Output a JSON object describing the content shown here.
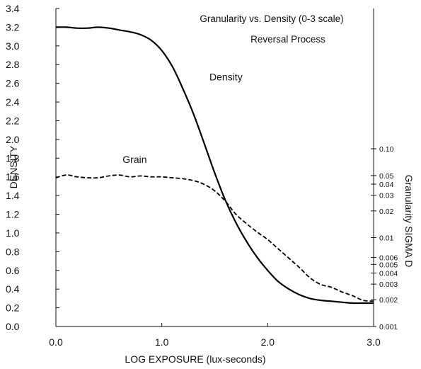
{
  "chart_data": {
    "type": "line",
    "title": "Granularity vs. Density (0-3 scale)",
    "subtitle": "Reversal Process",
    "xlabel": "LOG EXPOSURE (lux-seconds)",
    "ylabel": "DENSITY",
    "y2label": "Granularity SIGMA D",
    "xlim": [
      0,
      3
    ],
    "ylim": [
      0,
      3.4
    ],
    "x_ticks": [
      {
        "value": 0,
        "label": "0.0"
      },
      {
        "value": 1,
        "label": "1.0"
      },
      {
        "value": 2,
        "label": "2.0"
      },
      {
        "value": 3,
        "label": "3.0"
      }
    ],
    "y_ticks": [
      {
        "value": 0.0,
        "label": "0.0"
      },
      {
        "value": 0.2,
        "label": "0.2"
      },
      {
        "value": 0.4,
        "label": "0.4"
      },
      {
        "value": 0.6,
        "label": "0.6"
      },
      {
        "value": 0.8,
        "label": "0.8"
      },
      {
        "value": 1.0,
        "label": "1.0"
      },
      {
        "value": 1.2,
        "label": "1.2"
      },
      {
        "value": 1.4,
        "label": "1.4"
      },
      {
        "value": 1.6,
        "label": "1.6"
      },
      {
        "value": 1.8,
        "label": "1.8"
      },
      {
        "value": 2.0,
        "label": "2.0"
      },
      {
        "value": 2.2,
        "label": "2.2"
      },
      {
        "value": 2.4,
        "label": "2.4"
      },
      {
        "value": 2.6,
        "label": "2.6"
      },
      {
        "value": 2.8,
        "label": "2.8"
      },
      {
        "value": 3.0,
        "label": "3.0"
      },
      {
        "value": 3.2,
        "label": "3.2"
      },
      {
        "value": 3.4,
        "label": "3.4"
      }
    ],
    "y2_scale": "log",
    "y2_ticks": [
      {
        "value": 0.1,
        "label": "0.10"
      },
      {
        "value": 0.05,
        "label": "0.05"
      },
      {
        "value": 0.04,
        "label": "0.04"
      },
      {
        "value": 0.03,
        "label": "0.03"
      },
      {
        "value": 0.02,
        "label": "0.02"
      },
      {
        "value": 0.01,
        "label": "0.01"
      },
      {
        "value": 0.006,
        "label": "0.006"
      },
      {
        "value": 0.005,
        "label": "0.005"
      },
      {
        "value": 0.004,
        "label": "0.004"
      },
      {
        "value": 0.003,
        "label": "0.003"
      },
      {
        "value": 0.002,
        "label": "0.002"
      },
      {
        "value": 0.001,
        "label": "0.001"
      }
    ],
    "series": [
      {
        "name": "Density",
        "line_style": "solid",
        "x": [
          0,
          0.1,
          0.2,
          0.3,
          0.4,
          0.5,
          0.6,
          0.7,
          0.8,
          0.9,
          1.0,
          1.1,
          1.2,
          1.3,
          1.4,
          1.5,
          1.6,
          1.7,
          1.8,
          1.9,
          2.0,
          2.1,
          2.2,
          2.3,
          2.4,
          2.5,
          2.6,
          2.7,
          2.8,
          2.9,
          3.0
        ],
        "y": [
          3.2,
          3.2,
          3.19,
          3.19,
          3.2,
          3.19,
          3.17,
          3.15,
          3.12,
          3.06,
          2.95,
          2.78,
          2.54,
          2.27,
          1.96,
          1.64,
          1.35,
          1.11,
          0.91,
          0.74,
          0.6,
          0.48,
          0.4,
          0.34,
          0.3,
          0.28,
          0.27,
          0.26,
          0.25,
          0.25,
          0.25
        ]
      },
      {
        "name": "Grain",
        "line_style": "dashed",
        "x": [
          0,
          0.1,
          0.2,
          0.3,
          0.4,
          0.5,
          0.6,
          0.7,
          0.8,
          0.9,
          1.0,
          1.1,
          1.2,
          1.3,
          1.4,
          1.5,
          1.6,
          1.7,
          1.8,
          1.9,
          2.0,
          2.1,
          2.2,
          2.3,
          2.4,
          2.5,
          2.6,
          2.7,
          2.8,
          2.9,
          3.0
        ],
        "y": [
          1.59,
          1.62,
          1.6,
          1.59,
          1.59,
          1.61,
          1.62,
          1.6,
          1.61,
          1.6,
          1.6,
          1.59,
          1.58,
          1.56,
          1.52,
          1.45,
          1.34,
          1.2,
          1.1,
          1.01,
          0.93,
          0.83,
          0.73,
          0.63,
          0.52,
          0.45,
          0.42,
          0.37,
          0.33,
          0.28,
          0.27
        ]
      }
    ],
    "annotations": [
      {
        "text": "Density",
        "x": 1.45,
        "y": 2.63
      },
      {
        "text": "Grain",
        "x": 0.63,
        "y": 1.75
      }
    ],
    "grid": false
  }
}
